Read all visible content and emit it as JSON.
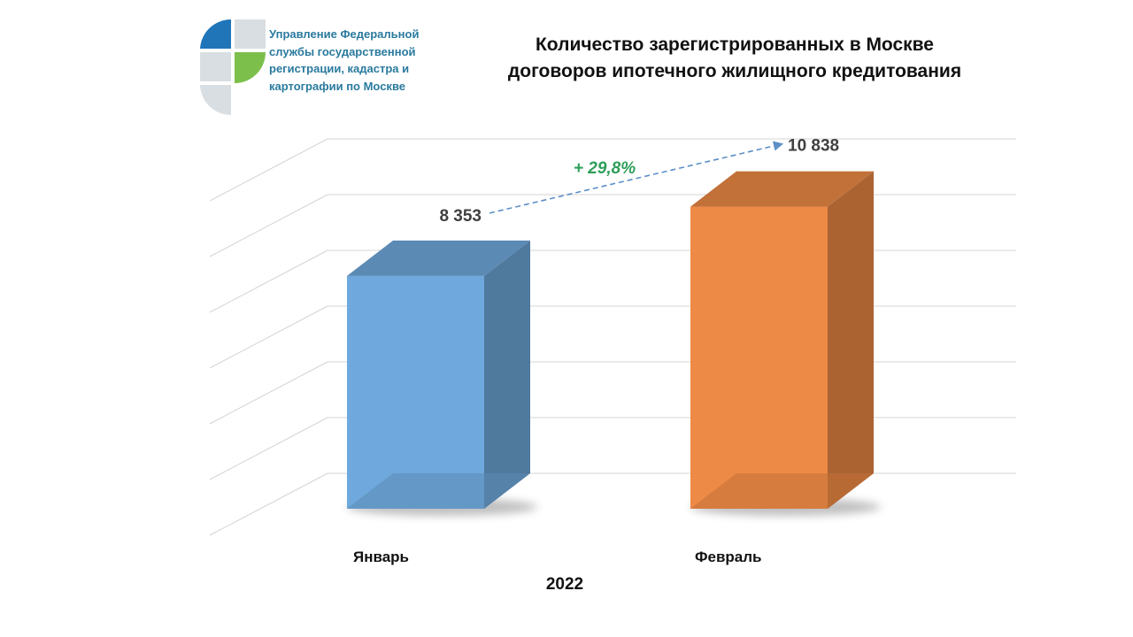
{
  "header": {
    "org_name": "Управление Федеральной службы государственной регистрации, кадастра и картографии по Москве",
    "title_line1": "Количество зарегистрированных  в Москве",
    "title_line2": "договоров ипотечного жилищного кредитования",
    "logo_icon": "rosreestr-logo-icon",
    "logo_colors": {
      "blue": "#1f75b8",
      "green": "#7cc04b",
      "grey": "#d9dee2"
    }
  },
  "chart_data": {
    "type": "bar",
    "title": "Количество зарегистрированных  в Москве договоров ипотечного жилищного кредитования",
    "categories": [
      "Январь",
      "Февраль"
    ],
    "values": [
      8353,
      10838
    ],
    "value_labels": [
      "8 353",
      "10 838"
    ],
    "xlabel": "2022",
    "ylabel": "",
    "ylim": [
      0,
      12000
    ],
    "grid": true,
    "legend": "none",
    "annotations": [
      {
        "text": "+ 29,8%",
        "from": "Январь",
        "to": "Февраль",
        "style": "dashed-arrow"
      }
    ],
    "colors": {
      "Январь": "#6fa8dc",
      "Февраль": "#ed8a45",
      "growth": "#2e9e5a",
      "arrow": "#5b8fc7"
    }
  }
}
